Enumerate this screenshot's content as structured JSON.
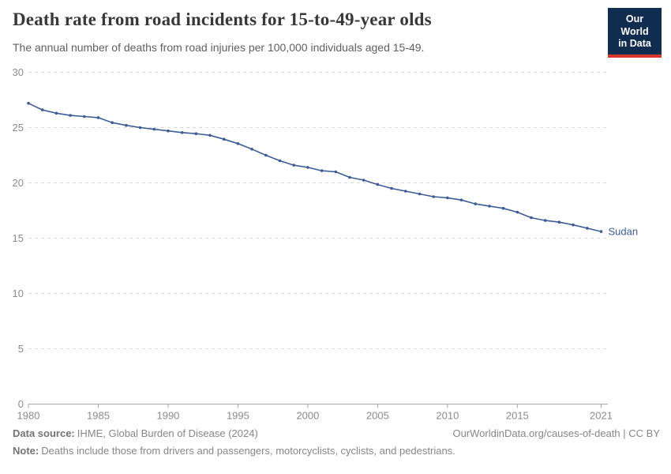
{
  "header": {
    "title": "Death rate from road incidents for 15-to-49-year olds",
    "subtitle": "The annual number of deaths from road injuries per 100,000 individuals aged 15-49.",
    "logo": {
      "line1": "Our World",
      "line2": "in Data"
    }
  },
  "chart_data": {
    "type": "line",
    "title": "Death rate from road incidents for 15-to-49-year olds",
    "subtitle": "The annual number of deaths from road injuries per 100,000 individuals aged 15-49.",
    "xlabel": "",
    "ylabel": "",
    "xlim": [
      1980,
      2021
    ],
    "ylim": [
      0,
      30
    ],
    "x_ticks": [
      1980,
      1985,
      1990,
      1995,
      2000,
      2005,
      2010,
      2015,
      2021
    ],
    "y_ticks": [
      0,
      5,
      10,
      15,
      20,
      25,
      30
    ],
    "grid": "horizontal-dashed",
    "legend_position": "end-of-line",
    "end_label": "Sudan",
    "series": [
      {
        "name": "Sudan",
        "x": [
          1980,
          1981,
          1982,
          1983,
          1984,
          1985,
          1986,
          1987,
          1988,
          1989,
          1990,
          1991,
          1992,
          1993,
          1994,
          1995,
          1996,
          1997,
          1998,
          1999,
          2000,
          2001,
          2002,
          2003,
          2004,
          2005,
          2006,
          2007,
          2008,
          2009,
          2010,
          2011,
          2012,
          2013,
          2014,
          2015,
          2016,
          2017,
          2018,
          2019,
          2020,
          2021
        ],
        "values": [
          27.2,
          26.6,
          26.3,
          26.1,
          26.0,
          25.9,
          25.45,
          25.2,
          25.0,
          24.85,
          24.7,
          24.55,
          24.45,
          24.3,
          23.95,
          23.55,
          23.05,
          22.5,
          22.0,
          21.6,
          21.4,
          21.1,
          21.0,
          20.5,
          20.25,
          19.85,
          19.5,
          19.25,
          19.0,
          18.75,
          18.65,
          18.45,
          18.1,
          17.9,
          17.7,
          17.35,
          16.85,
          16.6,
          16.45,
          16.2,
          15.9,
          15.6
        ]
      }
    ]
  },
  "footer": {
    "source_label": "Data source:",
    "source_text": "IHME, Global Burden of Disease (2024)",
    "link": "OurWorldinData.org/causes-of-death | CC BY",
    "note_label": "Note:",
    "note_text": "Deaths include those from drivers and passengers, motorcyclists, cyclists, and pedestrians."
  },
  "colors": {
    "line": "#3d5c94",
    "series_label": "#3d5c94",
    "logo_bg": "#102c4e",
    "logo_red": "#d7382d",
    "axis_text": "#8b8b8b",
    "grid": "#d8d8d8",
    "axis_line": "#a8a8a8"
  }
}
